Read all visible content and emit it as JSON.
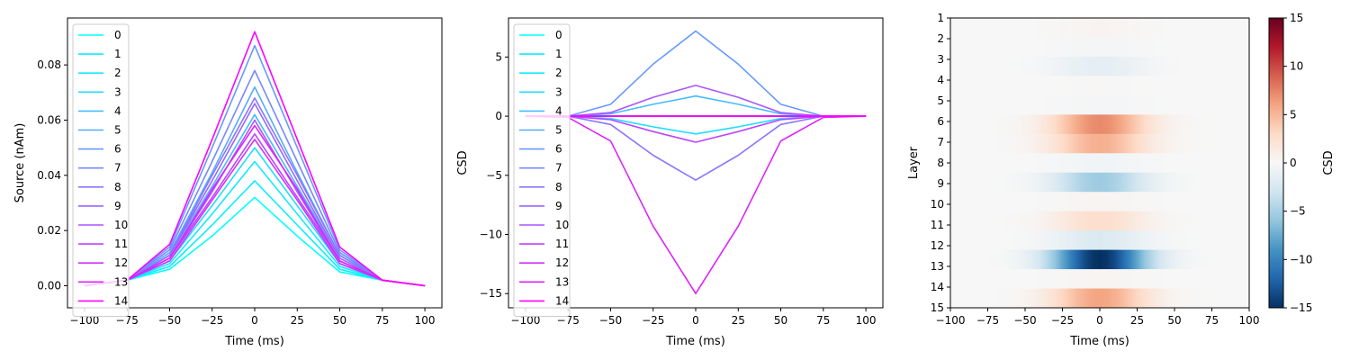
{
  "chart_data": [
    {
      "type": "line",
      "xlabel": "Time (ms)",
      "ylabel": "Source (nAm)",
      "xlim": [
        -110,
        110
      ],
      "ylim": [
        -0.008,
        0.097
      ],
      "xticks": [
        -100,
        -75,
        -50,
        -25,
        0,
        25,
        50,
        75,
        100
      ],
      "yticks": [
        0.0,
        0.02,
        0.04,
        0.06,
        0.08
      ],
      "ytick_labels": [
        "0.00",
        "0.02",
        "0.04",
        "0.06",
        "0.08"
      ],
      "legend_placement": "upper left",
      "x": [
        -100,
        -75,
        -50,
        -25,
        0,
        25,
        50,
        75,
        100
      ],
      "series": [
        {
          "name": "0",
          "color": "#00ffff",
          "values": [
            0.0,
            0.002,
            0.006,
            0.018,
            0.032,
            0.018,
            0.005,
            0.002,
            0.0
          ]
        },
        {
          "name": "1",
          "color": "#0beeff",
          "values": [
            0.0,
            0.002,
            0.007,
            0.022,
            0.038,
            0.022,
            0.006,
            0.002,
            0.0
          ]
        },
        {
          "name": "2",
          "color": "#16e9ff",
          "values": [
            0.0,
            0.002,
            0.008,
            0.026,
            0.045,
            0.026,
            0.007,
            0.002,
            0.0
          ]
        },
        {
          "name": "3",
          "color": "#22ddff",
          "values": [
            0.0,
            0.002,
            0.009,
            0.029,
            0.05,
            0.029,
            0.008,
            0.002,
            0.0
          ]
        },
        {
          "name": "4",
          "color": "#44bbff",
          "values": [
            0.0,
            0.002,
            0.011,
            0.036,
            0.062,
            0.036,
            0.01,
            0.002,
            0.0
          ]
        },
        {
          "name": "5",
          "color": "#55aaff",
          "values": [
            0.0,
            0.002,
            0.012,
            0.041,
            0.072,
            0.041,
            0.011,
            0.002,
            0.0
          ]
        },
        {
          "name": "6",
          "color": "#6699ff",
          "values": [
            0.0,
            0.002,
            0.014,
            0.05,
            0.087,
            0.05,
            0.013,
            0.002,
            0.0
          ]
        },
        {
          "name": "7",
          "color": "#7788ff",
          "values": [
            0.0,
            0.002,
            0.013,
            0.045,
            0.078,
            0.045,
            0.012,
            0.002,
            0.0
          ]
        },
        {
          "name": "8",
          "color": "#8877ff",
          "values": [
            0.0,
            0.002,
            0.011,
            0.04,
            0.068,
            0.04,
            0.011,
            0.002,
            0.0
          ]
        },
        {
          "name": "9",
          "color": "#9966ff",
          "values": [
            0.0,
            0.002,
            0.011,
            0.038,
            0.066,
            0.038,
            0.01,
            0.002,
            0.0
          ]
        },
        {
          "name": "10",
          "color": "#aa55ff",
          "values": [
            0.0,
            0.002,
            0.01,
            0.034,
            0.06,
            0.034,
            0.009,
            0.002,
            0.0
          ]
        },
        {
          "name": "11",
          "color": "#bb44ff",
          "values": [
            0.0,
            0.002,
            0.01,
            0.032,
            0.055,
            0.032,
            0.009,
            0.002,
            0.0
          ]
        },
        {
          "name": "12",
          "color": "#cc33ff",
          "values": [
            0.0,
            0.002,
            0.009,
            0.031,
            0.053,
            0.031,
            0.008,
            0.002,
            0.0
          ]
        },
        {
          "name": "13",
          "color": "#dd22ff",
          "values": [
            0.0,
            0.002,
            0.01,
            0.035,
            0.058,
            0.035,
            0.009,
            0.002,
            0.0
          ]
        },
        {
          "name": "14",
          "color": "#ff00ff",
          "values": [
            0.0,
            0.002,
            0.015,
            0.053,
            0.092,
            0.053,
            0.014,
            0.002,
            0.0
          ]
        }
      ]
    },
    {
      "type": "line",
      "xlabel": "Time (ms)",
      "ylabel": "CSD",
      "xlim": [
        -110,
        110
      ],
      "ylim": [
        -16.2,
        8.3
      ],
      "xticks": [
        -100,
        -75,
        -50,
        -25,
        0,
        25,
        50,
        75,
        100
      ],
      "yticks": [
        -15,
        -10,
        -5,
        0,
        5
      ],
      "ytick_labels": [
        "−15",
        "−10",
        "−5",
        "0",
        "5"
      ],
      "legend_placement": "upper left",
      "x": [
        -100,
        -75,
        -50,
        -25,
        0,
        25,
        50,
        75,
        100
      ],
      "series": [
        {
          "name": "0",
          "color": "#00ffff",
          "values": [
            0,
            0,
            0,
            0,
            0,
            0,
            0,
            0,
            0
          ]
        },
        {
          "name": "1",
          "color": "#0beeff",
          "values": [
            0,
            0,
            0,
            0,
            0,
            0,
            0,
            0,
            0
          ]
        },
        {
          "name": "2",
          "color": "#16e9ff",
          "values": [
            0,
            0,
            0,
            0,
            0,
            0,
            0,
            0,
            0
          ]
        },
        {
          "name": "3",
          "color": "#22ddff",
          "values": [
            0,
            0,
            -0.2,
            -0.9,
            -1.5,
            -0.9,
            -0.2,
            0,
            0
          ]
        },
        {
          "name": "4",
          "color": "#44bbff",
          "values": [
            0,
            0,
            0.2,
            1.0,
            1.7,
            1.0,
            0.2,
            0,
            0
          ]
        },
        {
          "name": "5",
          "color": "#55aaff",
          "values": [
            0,
            0,
            0,
            0,
            0,
            0,
            0,
            0,
            0
          ]
        },
        {
          "name": "6",
          "color": "#6699ff",
          "values": [
            0,
            0,
            1.0,
            4.4,
            7.2,
            4.4,
            1.0,
            0,
            0
          ]
        },
        {
          "name": "7",
          "color": "#7788ff",
          "values": [
            0,
            0,
            0,
            0,
            0,
            0,
            0,
            0,
            0
          ]
        },
        {
          "name": "8",
          "color": "#8877ff",
          "values": [
            0,
            0,
            -0.7,
            -3.3,
            -5.4,
            -3.3,
            -0.7,
            0,
            0
          ]
        },
        {
          "name": "9",
          "color": "#9966ff",
          "values": [
            0,
            0,
            0,
            0,
            0,
            0,
            0,
            0,
            0
          ]
        },
        {
          "name": "10",
          "color": "#aa55ff",
          "values": [
            0,
            0,
            0.3,
            1.6,
            2.6,
            1.6,
            0.3,
            0,
            0
          ]
        },
        {
          "name": "11",
          "color": "#bb44ff",
          "values": [
            0,
            0,
            -0.3,
            -1.3,
            -2.2,
            -1.3,
            -0.3,
            0,
            0
          ]
        },
        {
          "name": "12",
          "color": "#cc33ff",
          "values": [
            0,
            0,
            0,
            0,
            0,
            0,
            0,
            0,
            0
          ]
        },
        {
          "name": "13",
          "color": "#dd22ff",
          "values": [
            0,
            -0.1,
            -2.1,
            -9.3,
            -15.0,
            -9.3,
            -2.1,
            -0.1,
            0
          ]
        },
        {
          "name": "14",
          "color": "#ff00ff",
          "values": [
            0,
            0,
            0,
            0,
            0,
            0,
            0,
            0,
            0
          ]
        }
      ]
    },
    {
      "type": "heatmap",
      "xlabel": "Time (ms)",
      "ylabel": "Layer",
      "xlim": [
        -100,
        100
      ],
      "xticks": [
        -100,
        -75,
        -50,
        -25,
        0,
        25,
        50,
        75,
        100
      ],
      "rows": [
        "1",
        "2",
        "3",
        "4",
        "5",
        "6",
        "7",
        "8",
        "9",
        "10",
        "11",
        "12",
        "13",
        "14",
        "15"
      ],
      "row_peak_values": [
        0.4,
        -0.3,
        -1.5,
        0.1,
        -0.3,
        7.2,
        5.4,
        -0.5,
        -5.4,
        0.3,
        2.6,
        -2.2,
        -15.0,
        0.3,
        6.0
      ],
      "width_ms": 22,
      "colormap": "RdBu_r",
      "colorbar_label": "CSD",
      "clim": [
        -15,
        15
      ],
      "colorbar_ticks": [
        -15,
        -10,
        -5,
        0,
        5,
        10,
        15
      ],
      "colorbar_tick_labels": [
        "−15",
        "−10",
        "−5",
        "0",
        "5",
        "10",
        "15"
      ]
    }
  ]
}
